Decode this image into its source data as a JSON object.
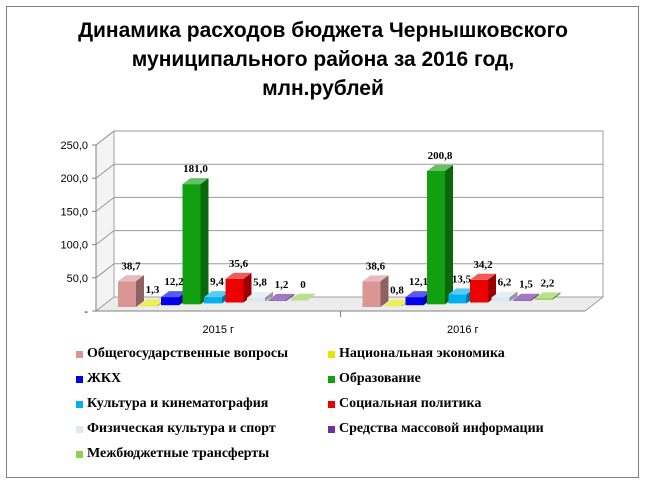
{
  "chart_data": {
    "type": "bar",
    "title": "Динамика расходов бюджета Чернышковского муниципального района за 2016 год, млн.рублей",
    "title_lines": [
      "Динамика расходов бюджета Чернышковского",
      "муниципального района за 2016 год,",
      "млн.рублей"
    ],
    "categories": [
      "2015 г",
      "2016 г"
    ],
    "ylim": [
      0,
      250
    ],
    "yticks": [
      "-",
      "50,0",
      "100,0",
      "150,0",
      "200,0",
      "250,0"
    ],
    "grid": true,
    "legend_position": "bottom",
    "series": [
      {
        "name": "Общегосударственные  вопросы",
        "values": [
          38.7,
          38.6
        ],
        "labels": [
          "38,7",
          "38,6"
        ],
        "color": "#d99694"
      },
      {
        "name": "Национальная экономика",
        "values": [
          1.3,
          0.8
        ],
        "labels": [
          "1,3",
          "0,8"
        ],
        "color": "#e6e600"
      },
      {
        "name": "ЖКХ",
        "values": [
          12.2,
          12.1
        ],
        "labels": [
          "12,2",
          "12,1"
        ],
        "color": "#0000ee"
      },
      {
        "name": "Образование",
        "values": [
          181.0,
          200.8
        ],
        "labels": [
          "181,0",
          "200,8"
        ],
        "color": "#10a010"
      },
      {
        "name": "Культура  и кинематография",
        "values": [
          9.4,
          13.5
        ],
        "labels": [
          "9,4",
          "13,5"
        ],
        "color": "#00b0f0"
      },
      {
        "name": "Социальная политика",
        "values": [
          35.6,
          34.2
        ],
        "labels": [
          "35,6",
          "34,2"
        ],
        "color": "#ee0000"
      },
      {
        "name": "Физическая культура и спорт",
        "values": [
          5.8,
          6.2
        ],
        "labels": [
          "5,8",
          "6,2"
        ],
        "color": "#dde8f0"
      },
      {
        "name": "Средства массовой информации",
        "values": [
          1.2,
          1.5
        ],
        "labels": [
          "1,2",
          "1,5"
        ],
        "color": "#7030a0"
      },
      {
        "name": "Межбюджетные трансферты",
        "values": [
          0,
          2.2
        ],
        "labels": [
          "0",
          "2,2"
        ],
        "color": "#92d050"
      }
    ]
  }
}
